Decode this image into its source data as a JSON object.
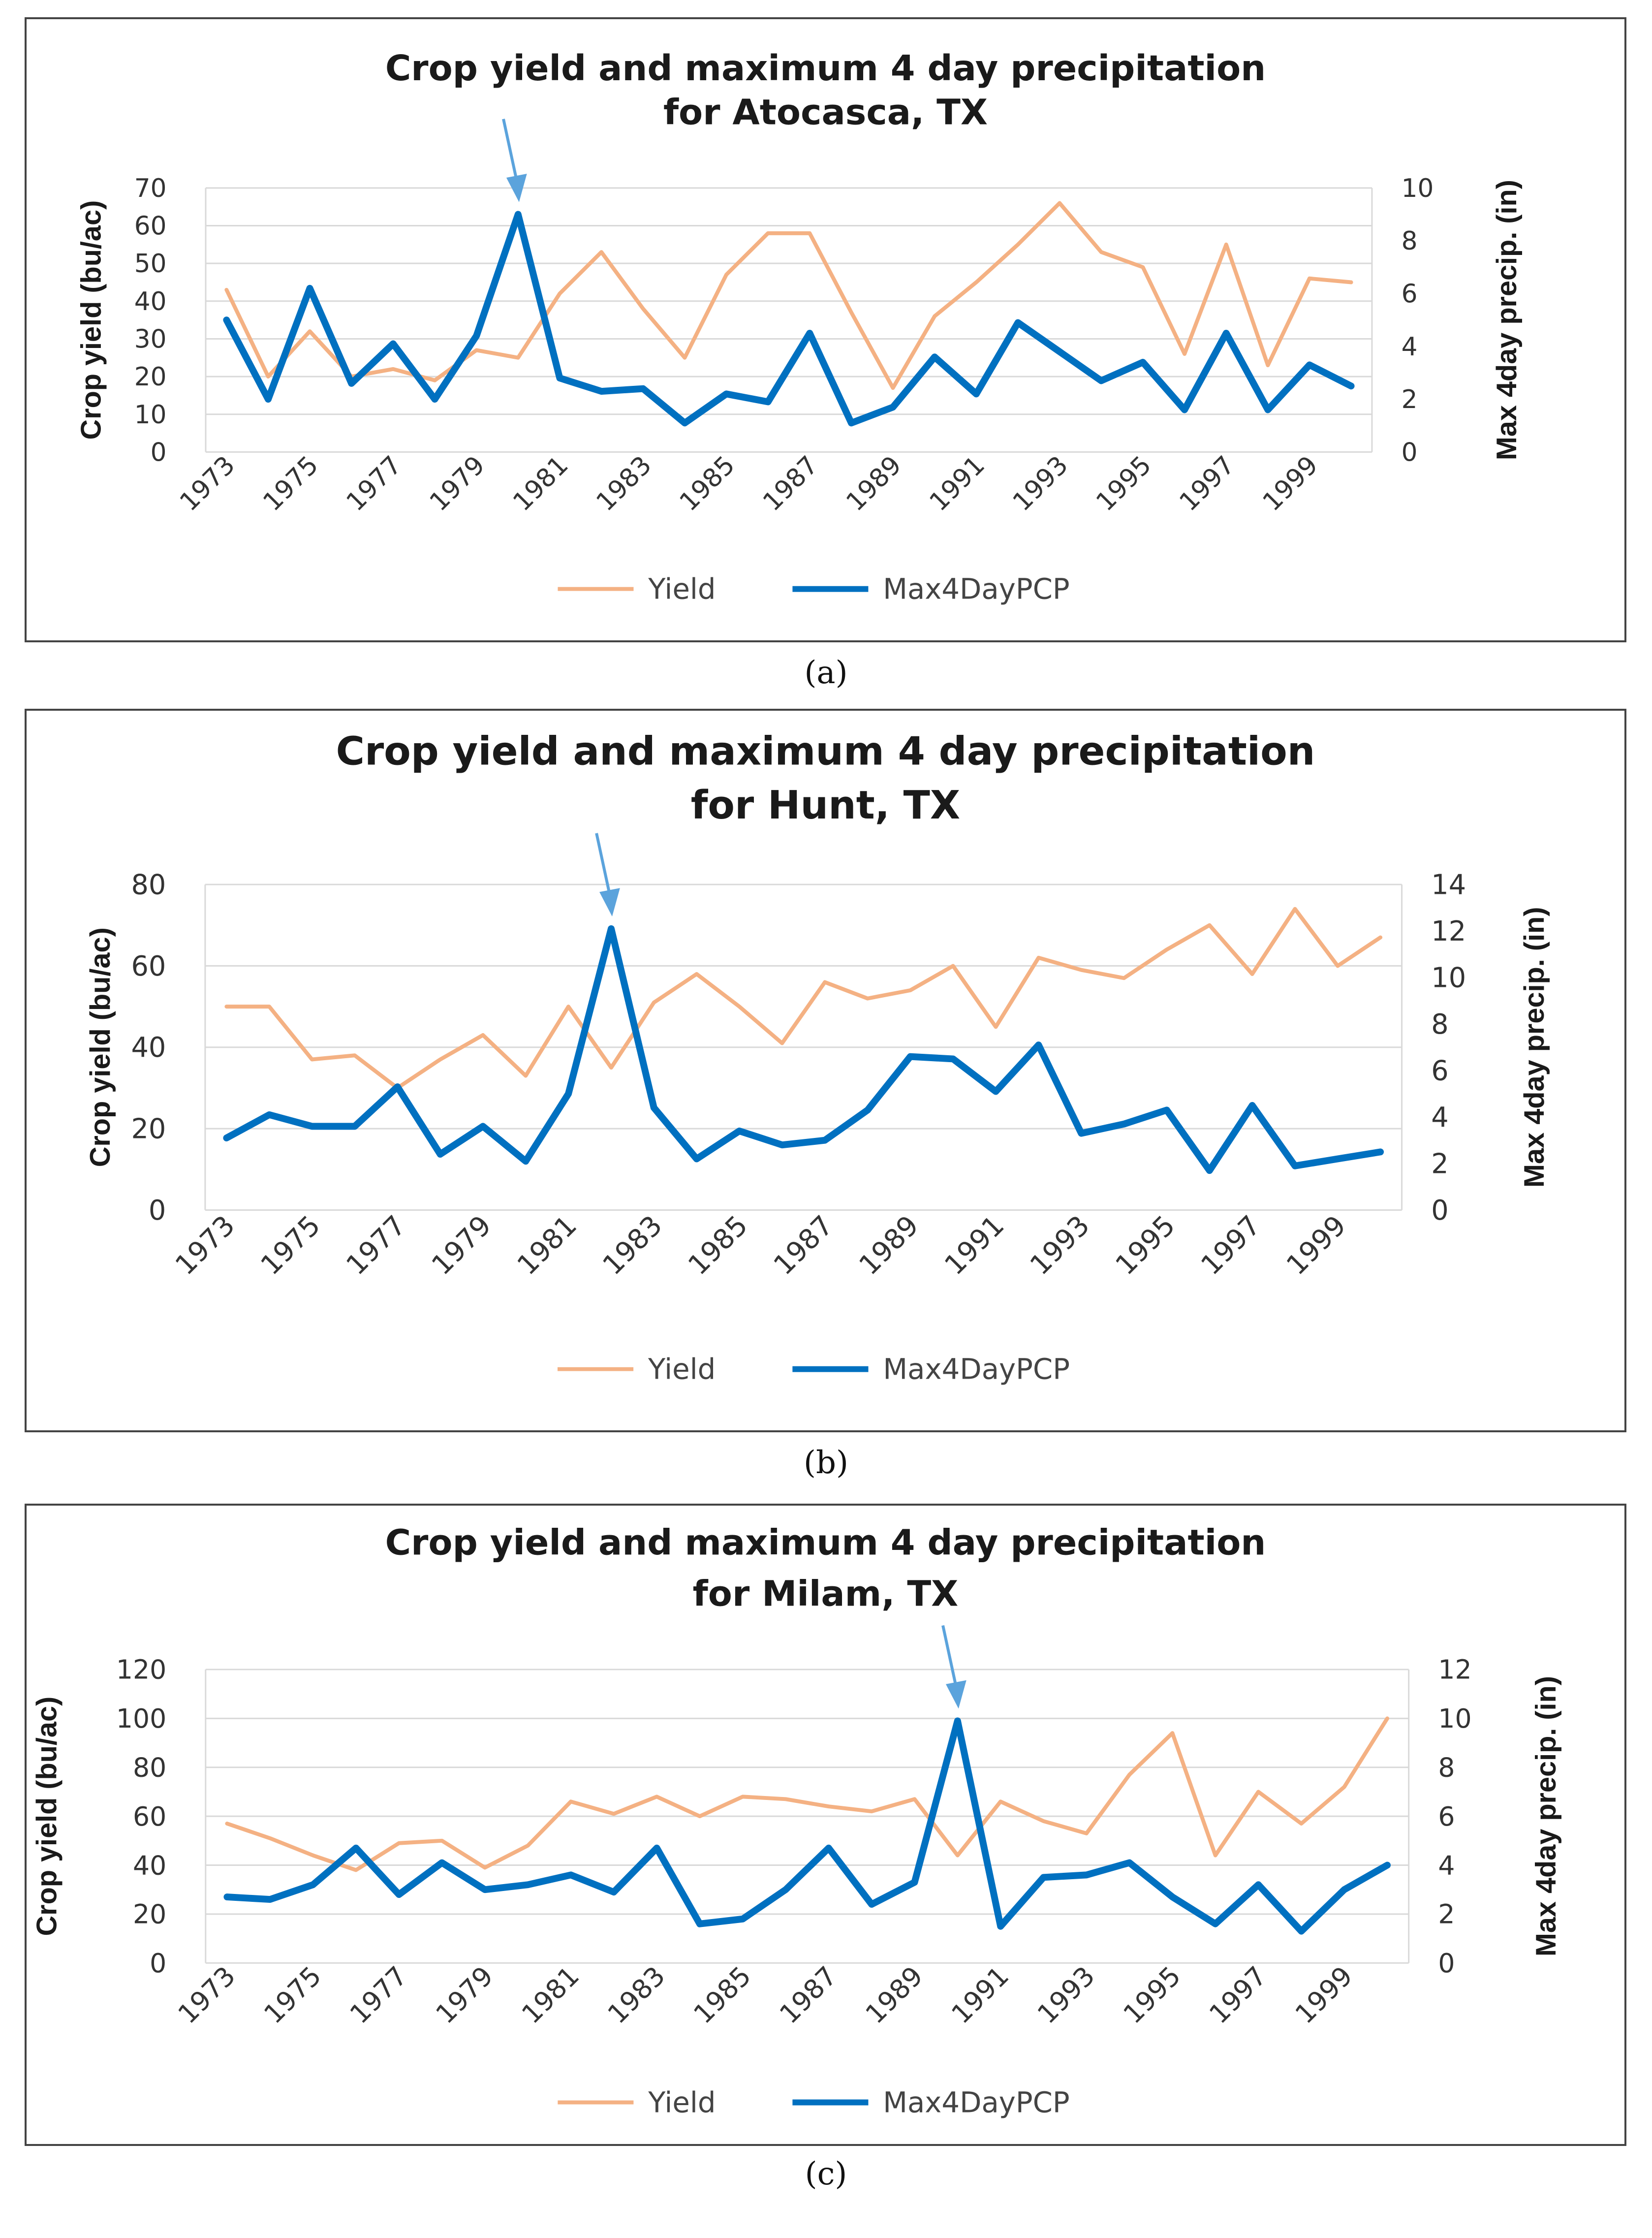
{
  "colors": {
    "yield": "#F4B183",
    "pcp": "#0070C0",
    "arrow": "#5BA3DC",
    "grid": "#D9D9D9"
  },
  "chart_data": [
    {
      "type": "line",
      "title": "Crop yield and maximum 4 day precipitation",
      "subtitle": "for Atocasca, TX",
      "caption": "(a)",
      "ylabel": "Crop yield (bu/ac)",
      "y2label": "Max 4day precip. (in)",
      "ylim": [
        0,
        70
      ],
      "yticks": [
        0,
        10,
        20,
        30,
        40,
        50,
        60,
        70
      ],
      "y2lim": [
        0,
        10
      ],
      "y2ticks": [
        0,
        2,
        4,
        6,
        8,
        10
      ],
      "grid": true,
      "legend_position": "bottom",
      "x": [
        1973,
        1974,
        1975,
        1976,
        1977,
        1978,
        1979,
        1980,
        1981,
        1982,
        1983,
        1984,
        1985,
        1986,
        1987,
        1988,
        1989,
        1990,
        1991,
        1992,
        1993,
        1994,
        1995,
        1996,
        1997,
        1998,
        1999,
        2000
      ],
      "xtick_labels": [
        "1973",
        "1975",
        "1977",
        "1979",
        "1981",
        "1983",
        "1985",
        "1987",
        "1989",
        "1991",
        "1993",
        "1995",
        "1997",
        "1999"
      ],
      "arrow_year": 1980,
      "series": [
        {
          "name": "Yield",
          "axis": "left",
          "values": [
            43,
            20,
            32,
            20,
            22,
            19,
            27,
            25,
            42,
            53,
            38,
            25,
            47,
            58,
            58,
            37,
            17,
            36,
            45,
            55,
            66,
            53,
            49,
            26,
            55,
            23,
            46,
            45
          ]
        },
        {
          "name": "Max4DayPCP",
          "axis": "right",
          "values": [
            5.0,
            2.0,
            6.2,
            2.6,
            4.1,
            2.0,
            4.4,
            9.0,
            2.8,
            2.3,
            2.4,
            1.1,
            2.2,
            1.9,
            4.5,
            1.1,
            1.7,
            3.6,
            2.2,
            4.9,
            3.8,
            2.7,
            3.4,
            1.6,
            4.5,
            1.6,
            3.3,
            2.5
          ]
        }
      ]
    },
    {
      "type": "line",
      "title": "Crop yield and maximum 4 day precipitation",
      "subtitle": "for Hunt, TX",
      "caption": "(b)",
      "ylabel": "Crop yield (bu/ac)",
      "y2label": "Max 4day precip. (in)",
      "ylim": [
        0,
        80
      ],
      "yticks": [
        0,
        20,
        40,
        60,
        80
      ],
      "y2lim": [
        0,
        14
      ],
      "y2ticks": [
        0,
        2,
        4,
        6,
        8,
        10,
        12,
        14
      ],
      "grid": true,
      "legend_position": "bottom",
      "x": [
        1973,
        1974,
        1975,
        1976,
        1977,
        1978,
        1979,
        1980,
        1981,
        1982,
        1983,
        1984,
        1985,
        1986,
        1987,
        1988,
        1989,
        1990,
        1991,
        1992,
        1993,
        1994,
        1995,
        1996,
        1997,
        1998,
        1999,
        2000
      ],
      "xtick_labels": [
        "1973",
        "1975",
        "1977",
        "1979",
        "1981",
        "1983",
        "1985",
        "1987",
        "1989",
        "1991",
        "1993",
        "1995",
        "1997",
        "1999"
      ],
      "arrow_year": 1982,
      "series": [
        {
          "name": "Yield",
          "axis": "left",
          "values": [
            50,
            50,
            37,
            38,
            30,
            37,
            43,
            33,
            50,
            35,
            51,
            58,
            50,
            41,
            56,
            52,
            54,
            60,
            45,
            62,
            59,
            57,
            64,
            70,
            58,
            74,
            60,
            67
          ]
        },
        {
          "name": "Max4DayPCP",
          "axis": "right",
          "values": [
            3.1,
            4.1,
            3.6,
            3.6,
            5.3,
            2.4,
            3.6,
            2.1,
            5.0,
            12.1,
            4.4,
            2.2,
            3.4,
            2.8,
            3.0,
            4.3,
            6.6,
            6.5,
            5.1,
            7.1,
            3.3,
            3.7,
            4.3,
            1.7,
            4.5,
            1.9,
            2.2,
            2.5
          ]
        }
      ]
    },
    {
      "type": "line",
      "title": "Crop yield and maximum 4 day precipitation",
      "subtitle": "for Milam, TX",
      "caption": "(c)",
      "ylabel": "Crop yield (bu/ac)",
      "y2label": "Max 4day precip. (in)",
      "ylim": [
        0,
        120
      ],
      "yticks": [
        0,
        20,
        40,
        60,
        80,
        100,
        120
      ],
      "y2lim": [
        0,
        12
      ],
      "y2ticks": [
        0,
        2,
        4,
        6,
        8,
        10,
        12
      ],
      "grid": true,
      "legend_position": "bottom",
      "x": [
        1973,
        1974,
        1975,
        1976,
        1977,
        1978,
        1979,
        1980,
        1981,
        1982,
        1983,
        1984,
        1985,
        1986,
        1987,
        1988,
        1989,
        1990,
        1991,
        1992,
        1993,
        1994,
        1995,
        1996,
        1997,
        1998,
        1999,
        2000
      ],
      "xtick_labels": [
        "1973",
        "1975",
        "1977",
        "1979",
        "1981",
        "1983",
        "1985",
        "1987",
        "1989",
        "1991",
        "1993",
        "1995",
        "1997",
        "1999"
      ],
      "arrow_year": 1990,
      "series": [
        {
          "name": "Yield",
          "axis": "left",
          "values": [
            57,
            51,
            44,
            38,
            49,
            50,
            39,
            48,
            66,
            61,
            68,
            60,
            68,
            67,
            64,
            62,
            67,
            44,
            66,
            58,
            53,
            77,
            94,
            44,
            70,
            57,
            72,
            100
          ]
        },
        {
          "name": "Max4DayPCP",
          "axis": "right",
          "values": [
            2.7,
            2.6,
            3.2,
            4.7,
            2.8,
            4.1,
            3.0,
            3.2,
            3.6,
            2.9,
            4.7,
            1.6,
            1.8,
            3.0,
            4.7,
            2.4,
            3.3,
            9.9,
            1.5,
            3.5,
            3.6,
            4.1,
            2.7,
            1.6,
            3.2,
            1.3,
            3.0,
            4.0
          ]
        }
      ]
    }
  ]
}
